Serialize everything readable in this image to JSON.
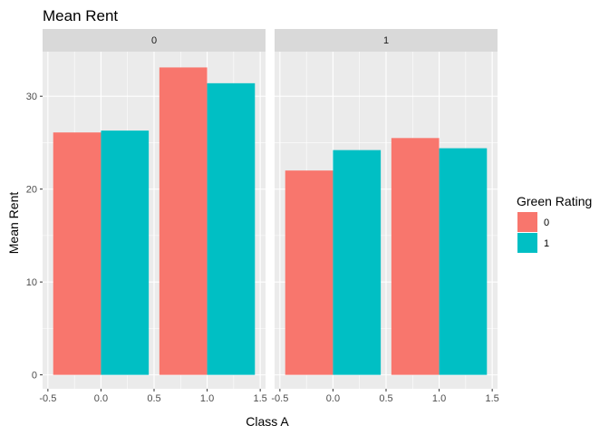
{
  "chart_data": {
    "type": "bar",
    "title": "Mean Rent",
    "xlabel": "Class A",
    "ylabel": "Mean Rent",
    "xlim": [
      -0.55,
      1.55
    ],
    "ylim": [
      -1.5,
      34.8
    ],
    "x_ticks": [
      -0.5,
      0.0,
      0.5,
      1.0,
      1.5
    ],
    "x_tick_labels": [
      "-0.5",
      "0.0",
      "0.5",
      "1.0",
      "1.5"
    ],
    "y_ticks": [
      0,
      10,
      20,
      30
    ],
    "y_tick_labels": [
      "0",
      "10",
      "20",
      "30"
    ],
    "grid": true,
    "bar_width": 0.45,
    "legend": {
      "title": "Green Rating",
      "position": "right",
      "entries": [
        {
          "label": "0",
          "color": "#F8766D"
        },
        {
          "label": "1",
          "color": "#00BFC4"
        }
      ]
    },
    "facets": [
      {
        "label": "0",
        "series": [
          {
            "group": "0",
            "color": "#F8766D",
            "x": [
              0,
              1
            ],
            "values": [
              26.1,
              33.1
            ]
          },
          {
            "group": "1",
            "color": "#00BFC4",
            "x": [
              0,
              1
            ],
            "values": [
              26.3,
              31.4
            ]
          }
        ]
      },
      {
        "label": "1",
        "series": [
          {
            "group": "0",
            "color": "#F8766D",
            "x": [
              0,
              1
            ],
            "values": [
              22.0,
              25.5
            ]
          },
          {
            "group": "1",
            "color": "#00BFC4",
            "x": [
              0,
              1
            ],
            "values": [
              24.2,
              24.4
            ]
          }
        ]
      }
    ],
    "colors": {
      "panel_background": "#EBEBEB",
      "strip_background": "#D9D9D9",
      "grid_major": "#FFFFFF",
      "tick_mark": "#333333"
    }
  }
}
